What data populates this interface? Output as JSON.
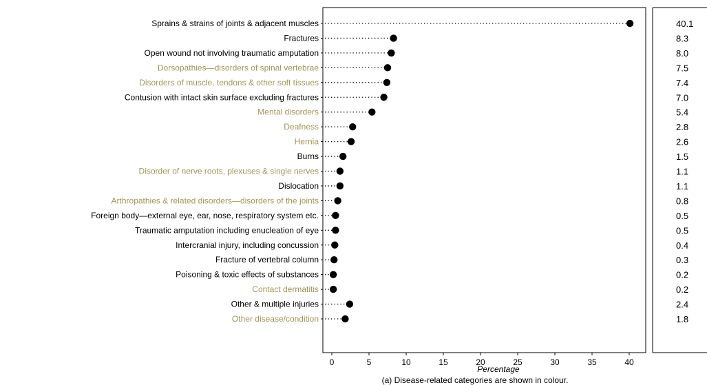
{
  "chart_data": {
    "type": "dot",
    "xlabel": "Percentage",
    "xlim": [
      0,
      40
    ],
    "xticks": [
      0,
      5,
      10,
      15,
      20,
      25,
      30,
      35,
      40
    ],
    "categories": [
      "Sprains & strains of joints & adjacent muscles",
      "Fractures",
      "Open wound not involving traumatic amputation",
      "Dorsopathies—disorders of spinal vertebrae",
      "Disorders of muscle, tendons & other soft tissues",
      "Contusion with intact skin surface excluding fractures",
      "Mental disorders",
      "Deafness",
      "Hernia",
      "Burns",
      "Disorder of nerve roots, plexuses & single nerves",
      "Dislocation",
      "Arthropathies & related disorders—disorders of the joints",
      "Foreign body—external eye, ear, nose, respiratory system etc.",
      "Traumatic amputation including enucleation of eye",
      "Intercranial injury, including concussion",
      "Fracture of vertebral column",
      "Poisoning & toxic effects of substances",
      "Contact dermatitis",
      "Other & multiple injuries",
      "Other disease/condition"
    ],
    "values": [
      40.1,
      8.3,
      8.0,
      7.5,
      7.4,
      7.0,
      5.4,
      2.8,
      2.6,
      1.5,
      1.1,
      1.1,
      0.8,
      0.5,
      0.5,
      0.4,
      0.3,
      0.2,
      0.2,
      2.4,
      1.8
    ],
    "value_labels": [
      "40.1",
      "8.3",
      "8.0",
      "7.5",
      "7.4",
      "7.0",
      "5.4",
      "2.8",
      "2.6",
      "1.5",
      "1.1",
      "1.1",
      "0.8",
      "0.5",
      "0.5",
      "0.4",
      "0.3",
      "0.2",
      "0.2",
      "2.4",
      "1.8"
    ],
    "disease_related": [
      false,
      false,
      false,
      true,
      true,
      false,
      true,
      true,
      true,
      false,
      true,
      false,
      true,
      false,
      false,
      false,
      false,
      false,
      true,
      false,
      true
    ],
    "footnote": "(a) Disease-related categories are shown in colour.",
    "colors": {
      "injury": "#000000",
      "disease": "#a5955a",
      "dot": "#000000",
      "leader": "#000000"
    }
  }
}
